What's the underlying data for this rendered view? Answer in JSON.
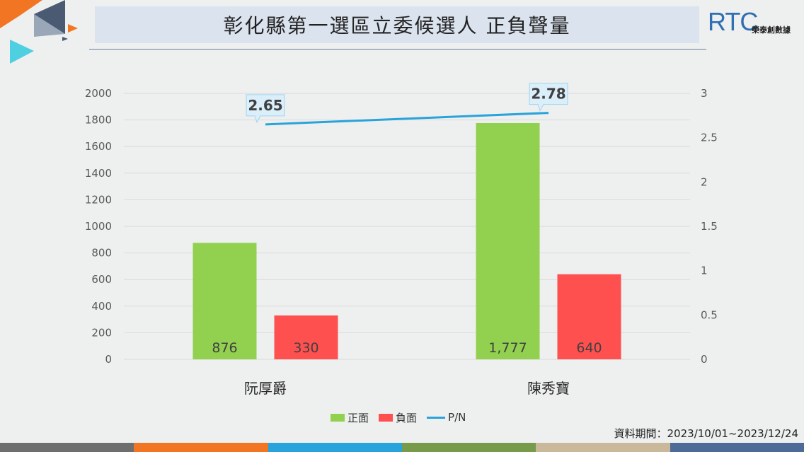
{
  "header": {
    "title": "彰化縣第一選區立委候選人  正負聲量",
    "logo_text": "RTC",
    "logo_subtitle": "榮泰創數據"
  },
  "colors": {
    "positive": "#92d050",
    "negative": "#ff5050",
    "ratio_line": "#29a3db",
    "label_box": "#dbeffb"
  },
  "legend": {
    "positive": "正面",
    "negative": "負面",
    "ratio": "P/N"
  },
  "footer": {
    "period": "資料期間：2023/10/01~2023/12/24",
    "stripe_colors": [
      "#6e6e6e",
      "#f27524",
      "#29a3db",
      "#779a4b",
      "#c9b89a",
      "#4e6a96"
    ]
  },
  "chart_data": {
    "type": "bar",
    "categories": [
      "阮厚爵",
      "陳秀寶"
    ],
    "series": [
      {
        "name": "正面",
        "values": [
          876,
          1777
        ],
        "labels": [
          "876",
          "1,777"
        ]
      },
      {
        "name": "負面",
        "values": [
          330,
          640
        ],
        "labels": [
          "330",
          "640"
        ]
      }
    ],
    "line_series": {
      "name": "P/N",
      "values": [
        2.65,
        2.78
      ],
      "labels": [
        "2.65",
        "2.78"
      ]
    },
    "ylim": [
      0,
      2000
    ],
    "yticks": [
      "0",
      "200",
      "400",
      "600",
      "800",
      "1000",
      "1200",
      "1400",
      "1600",
      "1800",
      "2000"
    ],
    "y2lim": [
      0,
      3
    ],
    "y2ticks": [
      "0",
      "0.5",
      "1",
      "1.5",
      "2",
      "2.5",
      "3"
    ],
    "grid": true,
    "legend_position": "bottom"
  }
}
